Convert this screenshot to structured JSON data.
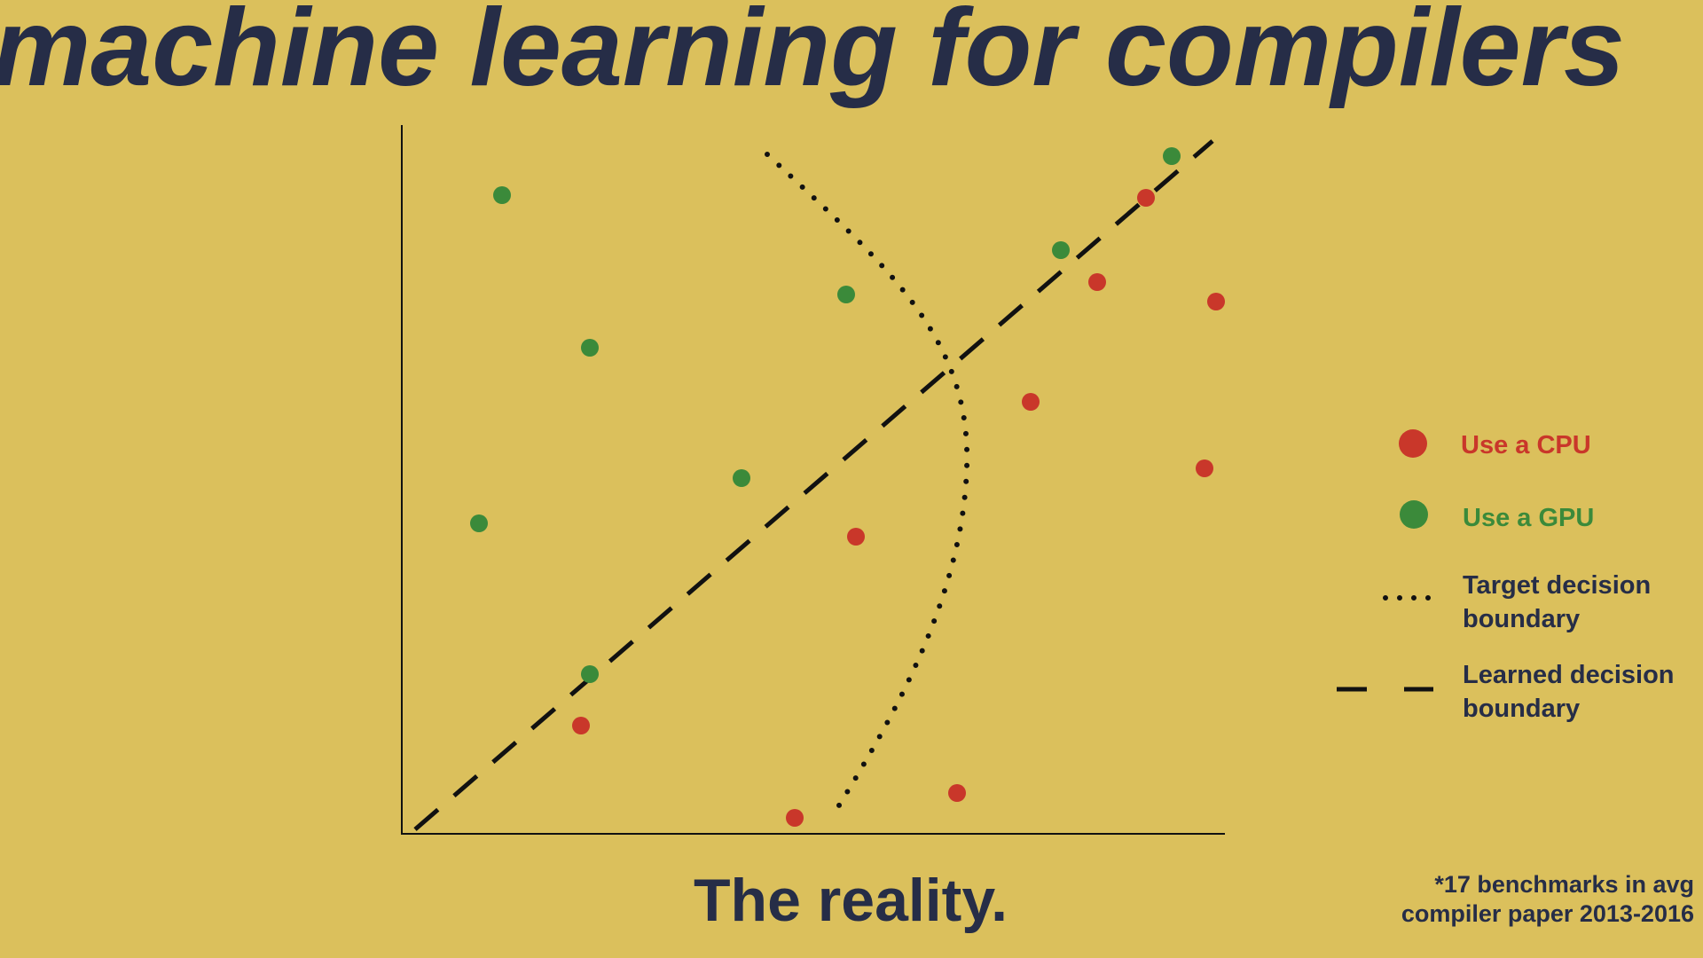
{
  "title": "machine learning for compilers",
  "caption": "The reality.",
  "legend": [
    {
      "lines": [
        "Use a CPU"
      ]
    },
    {
      "lines": [
        "Use a GPU"
      ]
    },
    {
      "lines": [
        "Target decision",
        "boundary"
      ]
    },
    {
      "lines": [
        "Learned decision",
        "boundary"
      ]
    }
  ],
  "footnote": [
    "*17 benchmarks in avg",
    "compiler paper 2013-2016"
  ]
}
